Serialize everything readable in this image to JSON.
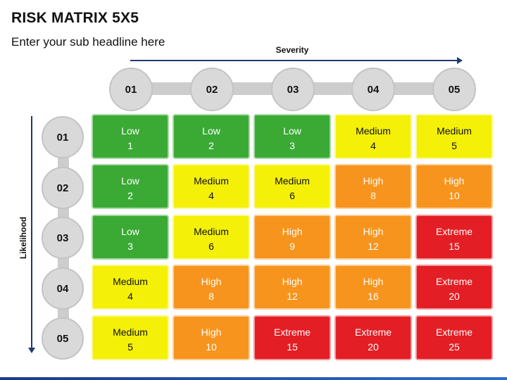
{
  "title": "RISK MATRIX 5X5",
  "subtitle": "Enter your sub headline here",
  "severity_label": "Severity",
  "likelihood_label": "Likelihood",
  "columns": [
    "01",
    "02",
    "03",
    "04",
    "05"
  ],
  "rows": [
    "01",
    "02",
    "03",
    "04",
    "05"
  ],
  "colors": {
    "low": "#3aaa35",
    "medium": "#f4f007",
    "high": "#f7941d",
    "extreme": "#e31e24"
  },
  "matrix": [
    [
      {
        "level": "Low",
        "score": "1"
      },
      {
        "level": "Low",
        "score": "2"
      },
      {
        "level": "Low",
        "score": "3"
      },
      {
        "level": "Medium",
        "score": "4"
      },
      {
        "level": "Medium",
        "score": "5"
      }
    ],
    [
      {
        "level": "Low",
        "score": "2"
      },
      {
        "level": "Medium",
        "score": "4"
      },
      {
        "level": "Medium",
        "score": "6"
      },
      {
        "level": "High",
        "score": "8"
      },
      {
        "level": "High",
        "score": "10"
      }
    ],
    [
      {
        "level": "Low",
        "score": "3"
      },
      {
        "level": "Medium",
        "score": "6"
      },
      {
        "level": "High",
        "score": "9"
      },
      {
        "level": "High",
        "score": "12"
      },
      {
        "level": "Extreme",
        "score": "15"
      }
    ],
    [
      {
        "level": "Medium",
        "score": "4"
      },
      {
        "level": "High",
        "score": "8"
      },
      {
        "level": "High",
        "score": "12"
      },
      {
        "level": "High",
        "score": "16"
      },
      {
        "level": "Extreme",
        "score": "20"
      }
    ],
    [
      {
        "level": "Medium",
        "score": "5"
      },
      {
        "level": "High",
        "score": "10"
      },
      {
        "level": "Extreme",
        "score": "15"
      },
      {
        "level": "Extreme",
        "score": "20"
      },
      {
        "level": "Extreme",
        "score": "25"
      }
    ]
  ]
}
